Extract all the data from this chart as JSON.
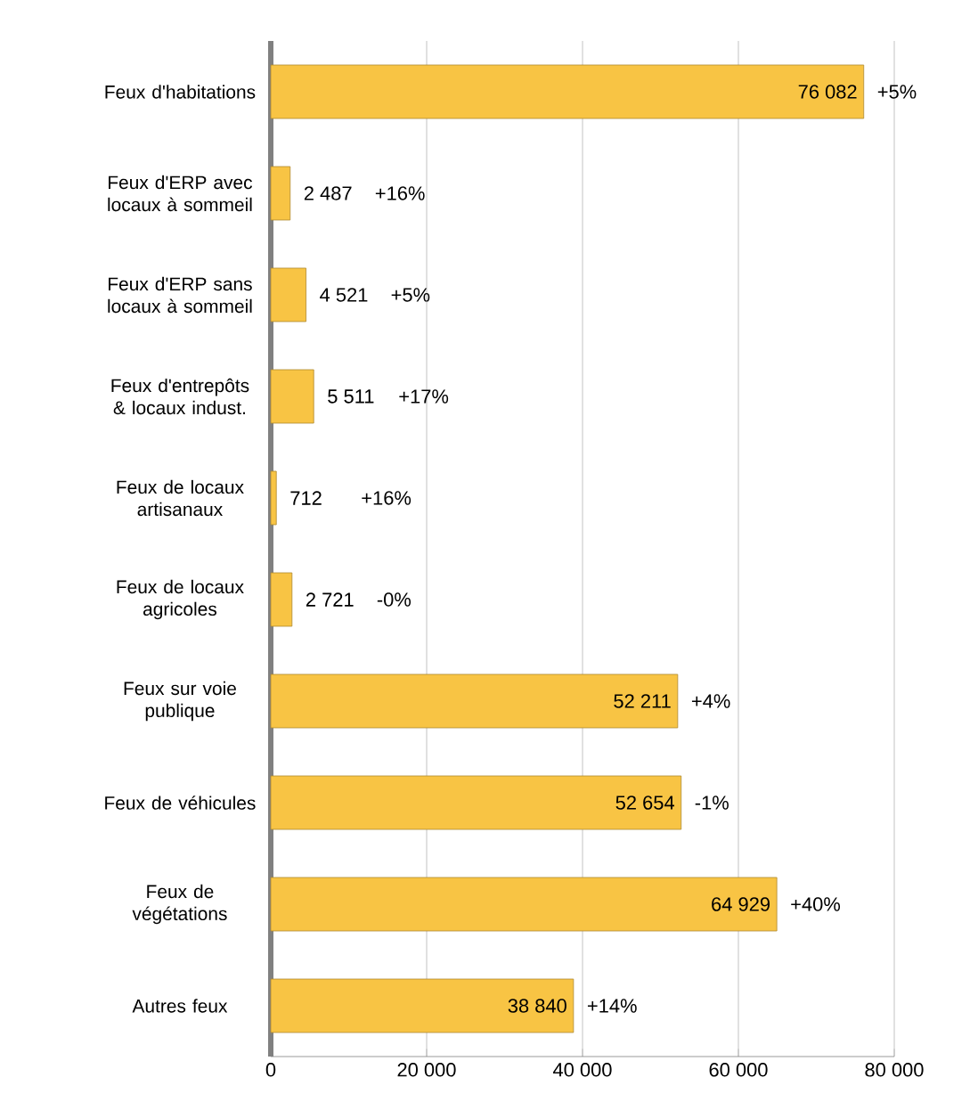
{
  "chart_data": {
    "type": "bar",
    "orientation": "horizontal",
    "categories": [
      "Feux d'habitations",
      "Feux d'ERP avec locaux à sommeil",
      "Feux d'ERP sans locaux à sommeil",
      "Feux d'entrepôts & locaux indust.",
      "Feux de locaux artisanaux",
      "Feux de locaux agricoles",
      "Feux sur voie publique",
      "Feux de véhicules",
      "Feux de végétations",
      "Autres feux"
    ],
    "values": [
      76082,
      2487,
      4521,
      5511,
      712,
      2721,
      52211,
      52654,
      64929,
      38840
    ],
    "value_labels": [
      "76 082",
      "2 487",
      "4 521",
      "5 511",
      "712",
      "2 721",
      "52 211",
      "52 654",
      "64 929",
      "38 840"
    ],
    "color": "#f8c444",
    "xlim": [
      0,
      80000
    ],
    "xticks": [
      0,
      {
        "value": 20000,
        "label": "20 000"
      },
      {
        "value": 40000,
        "label": "40 000"
      },
      {
        "value": 60000,
        "label": "60 000"
      },
      {
        "value": 80000,
        "label": "80 000"
      }
    ],
    "grid": "x",
    "annotations": [
      "+5%",
      "+16%",
      "+5%",
      "+17%",
      "+16%",
      "-0%",
      "+4%",
      "-1%",
      "+40%",
      "+14%"
    ]
  }
}
